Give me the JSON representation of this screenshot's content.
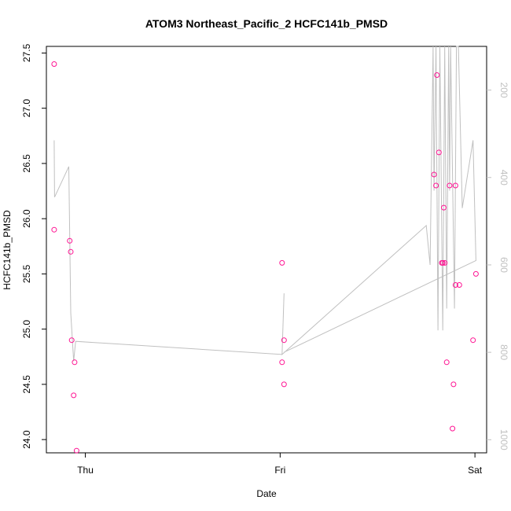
{
  "chart_data": {
    "type": "scatter",
    "title": "ATOM3 Northeast_Pacific_2 HCFC141b_PMSD",
    "xlabel": "Date",
    "ylabel": "HCFC141b_PMSD",
    "x_ticks": [
      {
        "label": "Thu",
        "value": 0.0
      },
      {
        "label": "Fri",
        "value": 1.0
      },
      {
        "label": "Sat",
        "value": 2.0
      }
    ],
    "xlim": [
      -0.2,
      2.06
    ],
    "y_ticks": [
      "24.0",
      "24.5",
      "25.0",
      "25.5",
      "26.0",
      "26.5",
      "27.0",
      "27.5"
    ],
    "ylim": [
      23.88,
      27.56
    ],
    "y2_ticks": [
      "200",
      "400",
      "600",
      "800",
      "1000"
    ],
    "y2lim": [
      1030,
      100
    ],
    "points_color": "#ff1493",
    "line_color": "#c0c0c0",
    "points": [
      {
        "x": -0.16,
        "y": 27.4
      },
      {
        "x": -0.16,
        "y": 25.9
      },
      {
        "x": -0.08,
        "y": 25.8
      },
      {
        "x": -0.075,
        "y": 25.7
      },
      {
        "x": -0.07,
        "y": 24.9
      },
      {
        "x": -0.06,
        "y": 24.4
      },
      {
        "x": -0.055,
        "y": 24.7
      },
      {
        "x": -0.045,
        "y": 23.9
      },
      {
        "x": 1.01,
        "y": 25.6
      },
      {
        "x": 1.01,
        "y": 24.7
      },
      {
        "x": 1.02,
        "y": 24.9
      },
      {
        "x": 1.02,
        "y": 24.5
      },
      {
        "x": 1.79,
        "y": 26.4
      },
      {
        "x": 1.8,
        "y": 26.3
      },
      {
        "x": 1.805,
        "y": 27.3
      },
      {
        "x": 1.815,
        "y": 26.6
      },
      {
        "x": 1.83,
        "y": 25.6
      },
      {
        "x": 1.835,
        "y": 25.6
      },
      {
        "x": 1.84,
        "y": 26.1
      },
      {
        "x": 1.845,
        "y": 25.6
      },
      {
        "x": 1.855,
        "y": 24.7
      },
      {
        "x": 1.87,
        "y": 26.3
      },
      {
        "x": 1.885,
        "y": 24.1
      },
      {
        "x": 1.89,
        "y": 24.5
      },
      {
        "x": 1.9,
        "y": 25.4
      },
      {
        "x": 1.9,
        "y": 26.3
      },
      {
        "x": 1.92,
        "y": 25.4
      },
      {
        "x": 1.99,
        "y": 24.9
      },
      {
        "x": 2.005,
        "y": 25.5
      }
    ],
    "line": [
      {
        "x": -0.16,
        "y2": 315
      },
      {
        "x": -0.158,
        "y2": 445
      },
      {
        "x": -0.085,
        "y2": 375
      },
      {
        "x": -0.075,
        "y2": 710
      },
      {
        "x": -0.06,
        "y2": 820
      },
      {
        "x": -0.05,
        "y2": 775
      },
      {
        "x": 1.01,
        "y2": 805
      },
      {
        "x": 1.02,
        "y2": 665
      },
      {
        "x": 1.01,
        "y2": 805
      },
      {
        "x": 1.75,
        "y2": 510
      },
      {
        "x": 1.77,
        "y2": 600
      },
      {
        "x": 1.785,
        "y2": 100
      },
      {
        "x": 1.79,
        "y2": 430
      },
      {
        "x": 1.8,
        "y2": 100
      },
      {
        "x": 1.81,
        "y2": 750
      },
      {
        "x": 1.82,
        "y2": 100
      },
      {
        "x": 1.835,
        "y2": 750
      },
      {
        "x": 1.845,
        "y2": 100
      },
      {
        "x": 1.855,
        "y2": 700
      },
      {
        "x": 1.865,
        "y2": 100
      },
      {
        "x": 1.87,
        "y2": 430
      },
      {
        "x": 1.875,
        "y2": 100
      },
      {
        "x": 1.895,
        "y2": 700
      },
      {
        "x": 1.905,
        "y2": 100
      },
      {
        "x": 1.915,
        "y2": 100
      },
      {
        "x": 1.935,
        "y2": 470
      },
      {
        "x": 1.99,
        "y2": 315
      },
      {
        "x": 2.005,
        "y2": 590
      },
      {
        "x": 1.02,
        "y2": 800
      }
    ]
  }
}
